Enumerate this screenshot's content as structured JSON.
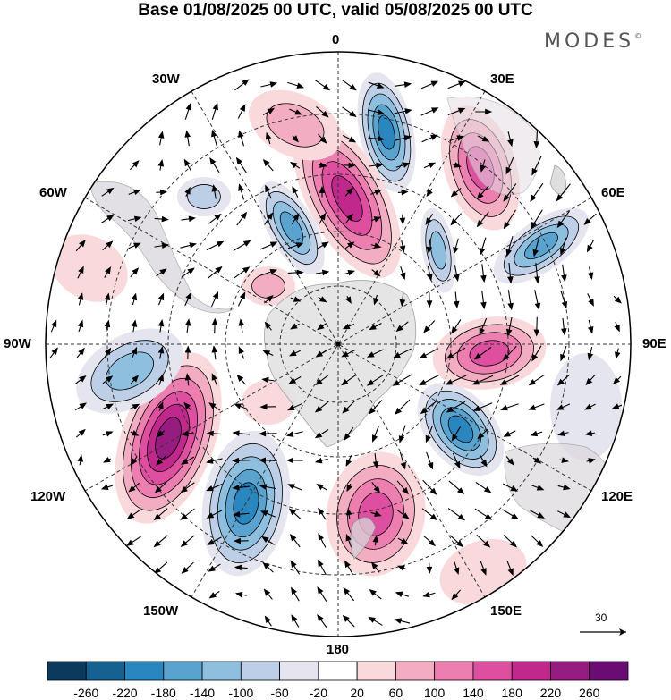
{
  "title": "Base 01/08/2025 00 UTC, valid 05/08/2025 00 UTC",
  "brand": "MODES",
  "brand_mark": "©",
  "longitude_labels": {
    "top": "0",
    "top_right": "30E",
    "right_upper": "60E",
    "right": "90E",
    "right_lower": "120E",
    "bottom_right": "150E",
    "bottom": "180",
    "bottom_left": "150W",
    "left_lower": "120W",
    "left": "90W",
    "left_upper": "60W",
    "top_left": "30W"
  },
  "reference_vector": "30",
  "colorbar": {
    "colors": [
      "#0b3a5c",
      "#16618f",
      "#2a86be",
      "#5aa3cf",
      "#8fbfdf",
      "#bccfe6",
      "#e5e5f0",
      "#ffffff",
      "#f9d9dc",
      "#f3adc2",
      "#ec7eb0",
      "#de4fa0",
      "#c0288b",
      "#961c80",
      "#6a0d73"
    ],
    "labels": [
      "-260",
      "-220",
      "-180",
      "-140",
      "-100",
      "-60",
      "-20",
      "20",
      "60",
      "100",
      "140",
      "180",
      "220",
      "260"
    ]
  }
}
